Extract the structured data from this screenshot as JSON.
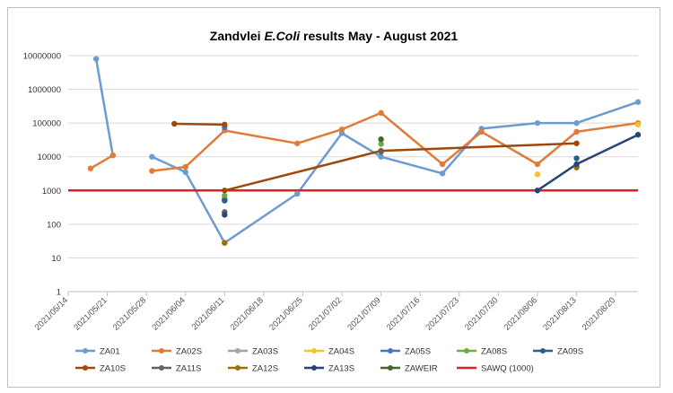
{
  "chart_data": {
    "type": "line",
    "title_parts": [
      "Zandvlei ",
      "E.Coli",
      " results May - August 2021"
    ],
    "y_scale": "log",
    "ylim": [
      1,
      10000000
    ],
    "y_ticks": [
      "1",
      "10",
      "100",
      "1000",
      "10000",
      "100000",
      "1000000",
      "10000000"
    ],
    "x_ticks": [
      "2021/05/14",
      "2021/05/21",
      "2021/05/28",
      "2021/06/04",
      "2021/06/11",
      "2021/06/18",
      "2021/06/25",
      "2021/07/02",
      "2021/07/09",
      "2021/07/16",
      "2021/07/23",
      "2021/07/30",
      "2021/08/06",
      "2021/08/13",
      "2021/08/20"
    ],
    "xlim": [
      "2021/05/14",
      "2021/08/24"
    ],
    "grid": "horizontal",
    "legend_position": "bottom",
    "series": [
      {
        "name": "ZA01",
        "color": "#6b9bd1",
        "line": true,
        "points": [
          [
            "2021/05/19",
            8000000
          ],
          [
            "2021/05/22",
            11000
          ],
          null,
          [
            "2021/05/29",
            10000
          ],
          [
            "2021/06/04",
            3500
          ],
          [
            "2021/06/11",
            28
          ],
          [
            "2021/06/24",
            800
          ],
          [
            "2021/07/02",
            50000
          ],
          [
            "2021/07/09",
            10000
          ],
          [
            "2021/07/20",
            3200
          ],
          [
            "2021/07/27",
            68000
          ],
          [
            "2021/08/06",
            100000
          ],
          [
            "2021/08/13",
            100000
          ],
          [
            "2021/08/24",
            420000
          ]
        ]
      },
      {
        "name": "ZA02S",
        "color": "#e07b39",
        "line": true,
        "points": [
          [
            "2021/05/18",
            4500
          ],
          [
            "2021/05/22",
            11000
          ],
          null,
          [
            "2021/05/29",
            3800
          ],
          [
            "2021/06/04",
            5000
          ],
          [
            "2021/06/11",
            60000
          ],
          [
            "2021/06/24",
            25000
          ],
          [
            "2021/07/02",
            65000
          ],
          [
            "2021/07/09",
            200000
          ],
          [
            "2021/07/20",
            6000
          ],
          [
            "2021/07/27",
            55000
          ],
          [
            "2021/08/06",
            6000
          ],
          [
            "2021/08/13",
            55000
          ],
          [
            "2021/08/24",
            100000
          ]
        ]
      },
      {
        "name": "ZA03S",
        "color": "#a5a5a5",
        "line": false,
        "points": []
      },
      {
        "name": "ZA04S",
        "color": "#f5c12f",
        "line": false,
        "points": [
          [
            "2021/08/06",
            3000
          ],
          [
            "2021/08/24",
            90000
          ]
        ]
      },
      {
        "name": "ZA05S",
        "color": "#4472c4",
        "line": false,
        "points": [
          [
            "2021/06/11",
            75000
          ],
          [
            "2021/06/11",
            550
          ]
        ]
      },
      {
        "name": "ZA08S",
        "color": "#6fac46",
        "line": false,
        "points": [
          [
            "2021/06/11",
            700
          ],
          [
            "2021/07/09",
            24000
          ]
        ]
      },
      {
        "name": "ZA09S",
        "color": "#255e91",
        "line": false,
        "points": [
          [
            "2021/06/11",
            500
          ],
          [
            "2021/08/13",
            9000
          ]
        ]
      },
      {
        "name": "ZA10S",
        "color": "#9e480e",
        "line": true,
        "points": [
          [
            "2021/06/02",
            95000
          ],
          [
            "2021/06/11",
            90000
          ],
          null,
          [
            "2021/06/11",
            1000
          ],
          [
            "2021/07/09",
            15000
          ],
          [
            "2021/08/13",
            25000
          ]
        ]
      },
      {
        "name": "ZA11S",
        "color": "#636363",
        "line": false,
        "points": [
          [
            "2021/06/11",
            230
          ],
          [
            "2021/07/09",
            14000
          ],
          [
            "2021/08/13",
            5000
          ]
        ]
      },
      {
        "name": "ZA12S",
        "color": "#997300",
        "line": false,
        "points": [
          [
            "2021/06/11",
            28
          ],
          [
            "2021/08/13",
            4800
          ]
        ]
      },
      {
        "name": "ZA13S",
        "color": "#264478",
        "line": true,
        "points": [
          [
            "2021/06/11",
            190
          ],
          null,
          [
            "2021/08/06",
            1000
          ],
          [
            "2021/08/13",
            6000
          ],
          [
            "2021/08/24",
            45000
          ]
        ]
      },
      {
        "name": "ZAWEIR",
        "color": "#43682b",
        "line": false,
        "points": [
          [
            "2021/07/09",
            33000
          ]
        ]
      },
      {
        "name": "SAWQ (1000)",
        "color": "#e02020",
        "line": true,
        "points": [
          [
            "2021/05/14",
            1000
          ],
          [
            "2021/08/24",
            1000
          ]
        ]
      }
    ]
  }
}
